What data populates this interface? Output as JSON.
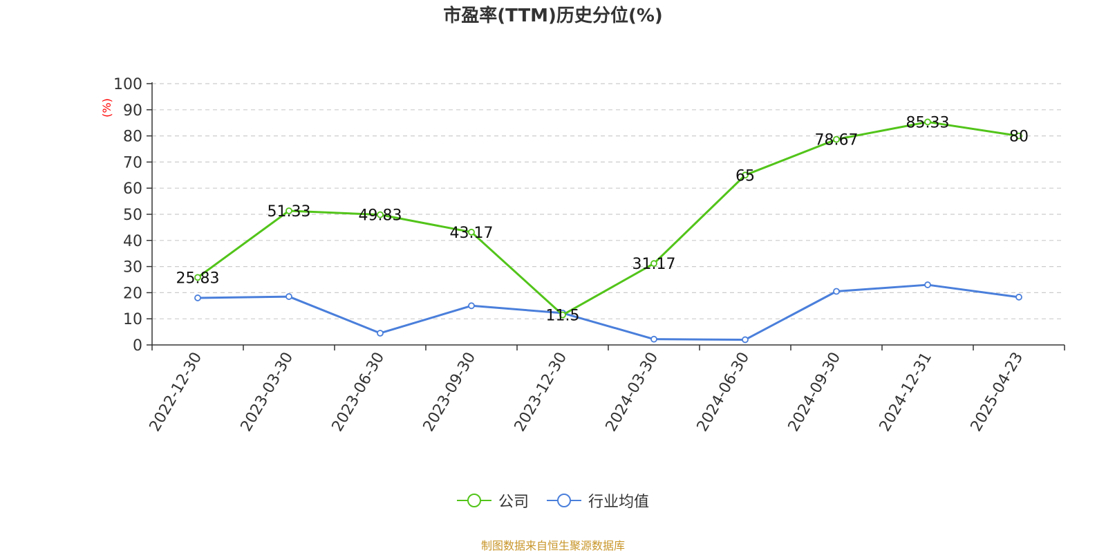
{
  "title": "市盈率(TTM)历史分位(%)",
  "source_note": "制图数据来自恒生聚源数据库",
  "colors": {
    "company": "#52c41a",
    "industry": "#4a7fdb",
    "grid": "#cccccc",
    "axis": "#333333",
    "ylabel": "#ff0000"
  },
  "chart_data": {
    "type": "line",
    "title": "市盈率(TTM)历史分位(%)",
    "xlabel": "",
    "ylabel": "(%)",
    "ylim": [
      0,
      100
    ],
    "yticks": [
      0,
      10,
      20,
      30,
      40,
      50,
      60,
      70,
      80,
      90,
      100
    ],
    "grid": true,
    "legend_position": "bottom-center",
    "categories": [
      "2022-12-30",
      "2023-03-30",
      "2023-06-30",
      "2023-09-30",
      "2023-12-30",
      "2024-03-30",
      "2024-06-30",
      "2024-09-30",
      "2024-12-31",
      "2025-04-23"
    ],
    "series": [
      {
        "name": "公司",
        "color": "#52c41a",
        "show_labels": true,
        "values": [
          25.83,
          51.33,
          49.83,
          43.17,
          11.5,
          31.17,
          65,
          78.67,
          85.33,
          80
        ]
      },
      {
        "name": "行业均值",
        "color": "#4a7fdb",
        "show_labels": false,
        "values": [
          18,
          18.5,
          4.5,
          15,
          12.2,
          2.2,
          2,
          20.5,
          23,
          18.3
        ]
      }
    ]
  }
}
